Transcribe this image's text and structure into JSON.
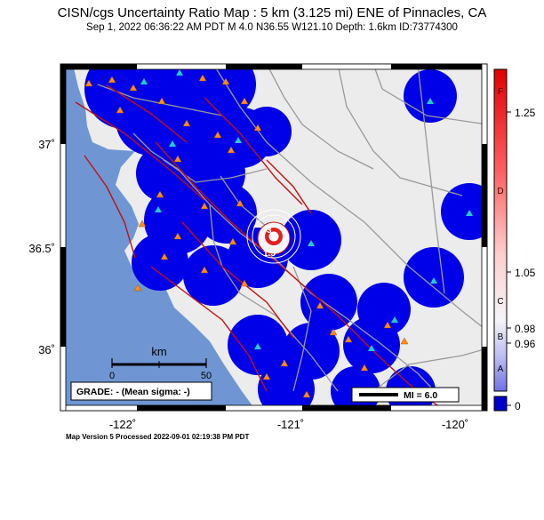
{
  "header": {
    "title": "CISN/cgs Uncertainty Ratio Map : 5 km (3.125 mi) ENE of Pinnacles, CA",
    "subtitle": "Sep  1, 2022 06:36:22 AM PDT    M 4.0    N36.55 W121.10    Depth: 1.6km    ID:73774300"
  },
  "axes": {
    "lat_ticks": [
      "37˚",
      "36.5˚",
      "36˚"
    ],
    "lon_ticks": [
      "-122˚",
      "-121˚",
      "-120˚"
    ]
  },
  "colorbar": {
    "letters": [
      "F",
      "D",
      "C",
      "B",
      "A"
    ],
    "values": [
      "1.25",
      "1.05",
      "0.98",
      "0.96",
      "0"
    ]
  },
  "scale_bar": {
    "unit": "km",
    "labels": [
      "0",
      "50"
    ]
  },
  "grade_box": "GRADE: - (Mean sigma: -)",
  "mi_legend": "MI = 6.0",
  "contours": [
    "3",
    "1.5"
  ],
  "footer": "Map Version 5 Processed 2022-09-01 02:19:38 PM PDT",
  "colors": {
    "ocean": "#6f96d3",
    "land": "#ececec",
    "station_blob": "#0000e8",
    "fault": "#c21010",
    "road": "#9a9a9a",
    "station_triangle": "#ff8c1a",
    "station_cyan": "#22cccc"
  }
}
